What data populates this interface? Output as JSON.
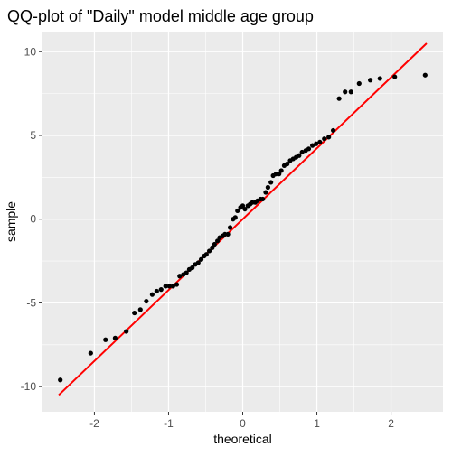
{
  "chart_data": {
    "type": "scatter",
    "title": "QQ-plot of \"Daily\" model middle age group",
    "xlabel": "theoretical",
    "ylabel": "sample",
    "xlim": [
      -2.7,
      2.7
    ],
    "ylim": [
      -11.5,
      11.2
    ],
    "x_ticks": [
      -2,
      -1,
      0,
      1,
      2
    ],
    "x_tick_labels": [
      "-2",
      "-1",
      "0",
      "1",
      "2"
    ],
    "y_ticks": [
      -10,
      -5,
      0,
      5,
      10
    ],
    "y_tick_labels": [
      "-10",
      "-5",
      "0",
      "5",
      "10"
    ],
    "grid": true,
    "series": [
      {
        "kind": "points",
        "color": "#000000",
        "x": [
          -2.46,
          -2.05,
          -1.85,
          -1.72,
          -1.57,
          -1.46,
          -1.38,
          -1.3,
          -1.22,
          -1.16,
          -1.1,
          -1.04,
          -0.99,
          -0.94,
          -0.89,
          -0.85,
          -0.8,
          -0.76,
          -0.72,
          -0.68,
          -0.64,
          -0.6,
          -0.56,
          -0.52,
          -0.49,
          -0.45,
          -0.41,
          -0.38,
          -0.34,
          -0.31,
          -0.27,
          -0.24,
          -0.2,
          -0.17,
          -0.13,
          -0.1,
          -0.07,
          -0.03,
          0.0,
          0.03,
          0.07,
          0.1,
          0.13,
          0.17,
          0.2,
          0.24,
          0.27,
          0.31,
          0.34,
          0.38,
          0.41,
          0.45,
          0.49,
          0.52,
          0.56,
          0.6,
          0.64,
          0.68,
          0.72,
          0.76,
          0.8,
          0.85,
          0.89,
          0.94,
          0.99,
          1.04,
          1.1,
          1.16,
          1.22,
          1.3,
          1.38,
          1.46,
          1.57,
          1.72,
          1.85,
          2.05,
          2.46
        ],
        "y": [
          -9.6,
          -8.0,
          -7.2,
          -7.1,
          -6.7,
          -5.6,
          -5.4,
          -4.9,
          -4.5,
          -4.3,
          -4.2,
          -4.0,
          -4.0,
          -4.0,
          -3.9,
          -3.4,
          -3.3,
          -3.2,
          -3.0,
          -2.9,
          -2.7,
          -2.6,
          -2.4,
          -2.2,
          -2.1,
          -1.9,
          -1.7,
          -1.5,
          -1.3,
          -1.1,
          -1.0,
          -0.9,
          -0.9,
          -0.5,
          0.0,
          0.1,
          0.5,
          0.7,
          0.8,
          0.6,
          0.8,
          0.9,
          1.0,
          1.0,
          1.1,
          1.2,
          1.2,
          1.6,
          1.9,
          2.2,
          2.6,
          2.7,
          2.7,
          2.9,
          3.2,
          3.3,
          3.5,
          3.6,
          3.7,
          3.8,
          4.0,
          4.1,
          4.2,
          4.4,
          4.5,
          4.6,
          4.8,
          4.9,
          5.3,
          7.2,
          7.6,
          7.6,
          8.1,
          8.3,
          8.4,
          8.5,
          8.6
        ]
      },
      {
        "kind": "line",
        "color": "#ff0000",
        "x": [
          -2.48,
          2.48
        ],
        "y": [
          -10.5,
          10.5
        ]
      }
    ]
  }
}
